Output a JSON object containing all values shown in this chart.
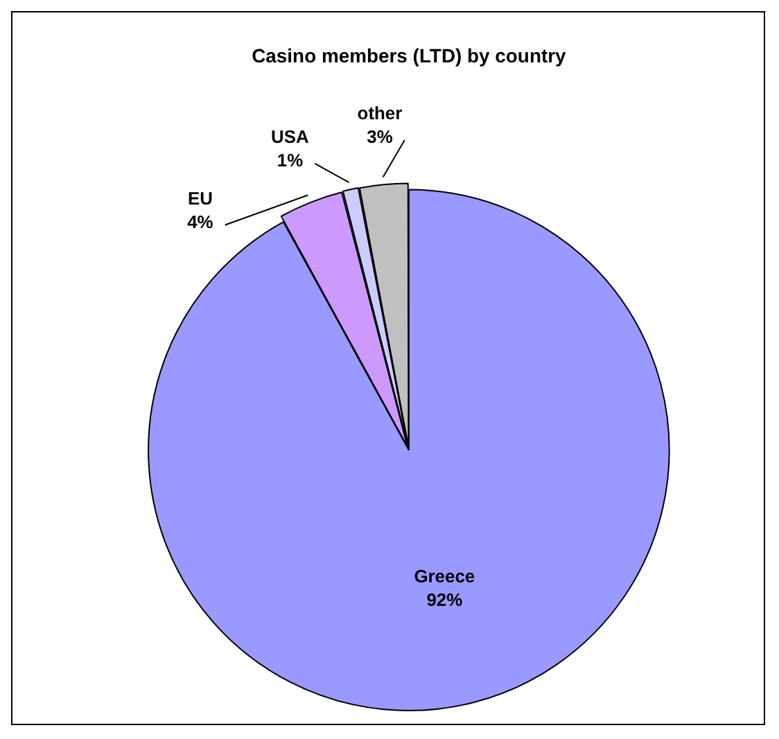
{
  "chart_data": {
    "type": "pie",
    "title": "Casino members (LTD) by country",
    "categories": [
      "Greece",
      "EU",
      "USA",
      "other"
    ],
    "values": [
      92,
      4,
      1,
      3
    ],
    "value_labels": [
      "92%",
      "4%",
      "1%",
      "3%"
    ],
    "colors": [
      "#9999ff",
      "#cc99ff",
      "#ccccff",
      "#c0c0c0"
    ],
    "legend": false
  }
}
